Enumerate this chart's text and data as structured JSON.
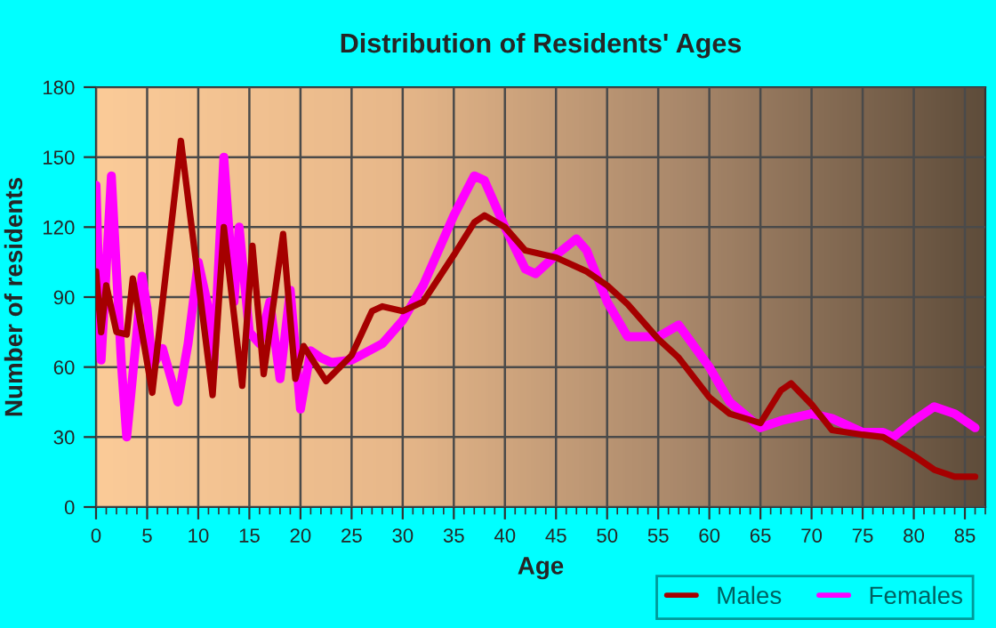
{
  "chart_data": {
    "type": "line",
    "title": "Distribution of Residents' Ages",
    "xlabel": "Age",
    "ylabel": "Number of residents",
    "xlim": [
      0,
      87
    ],
    "xticks": [
      0,
      5,
      10,
      15,
      20,
      25,
      30,
      35,
      40,
      45,
      50,
      55,
      60,
      65,
      70,
      75,
      80,
      85
    ],
    "ylim": [
      0,
      180
    ],
    "yticks": [
      0,
      30,
      60,
      90,
      120,
      150,
      180
    ],
    "grid": true,
    "legend": "bottom right",
    "series": [
      {
        "name": "Males",
        "color": "#a50000",
        "x": [
          0,
          0.5,
          1,
          2,
          3,
          3.6,
          5.5,
          8.3,
          11.4,
          12.5,
          14.3,
          15.3,
          16.4,
          18.3,
          19.5,
          20.3,
          22.5,
          25,
          27,
          28,
          30,
          32,
          35,
          37,
          38,
          40,
          42,
          45,
          48,
          50,
          52,
          55,
          57,
          60,
          62,
          65,
          67,
          68,
          70,
          72,
          75,
          77,
          80,
          82,
          84,
          86
        ],
        "values": [
          101,
          75,
          95,
          75,
          74,
          98,
          49,
          157,
          48,
          120,
          52,
          112,
          57,
          117,
          55,
          69,
          54,
          65,
          84,
          86,
          84,
          88,
          108,
          122,
          125,
          120,
          110,
          107,
          101,
          95,
          87,
          72,
          64,
          47,
          40,
          36,
          50,
          53,
          44,
          33,
          31,
          30,
          22,
          16,
          13,
          13
        ]
      },
      {
        "name": "Females",
        "color": "#ff00ff",
        "x": [
          0,
          0.5,
          1.5,
          2.5,
          3,
          4,
          4.5,
          5,
          5.5,
          6.5,
          8,
          9,
          10,
          11,
          11.5,
          12.5,
          13.5,
          14,
          15,
          16,
          17,
          18,
          19,
          20,
          21,
          22,
          23,
          25,
          28,
          30,
          32,
          35,
          37,
          38,
          40,
          42,
          43,
          45,
          47,
          48,
          50,
          52,
          55,
          57,
          60,
          62,
          65,
          67,
          70,
          72,
          75,
          77,
          78,
          80,
          82,
          84,
          86
        ],
        "values": [
          138,
          63,
          142,
          60,
          30,
          75,
          99,
          85,
          60,
          68,
          45,
          70,
          105,
          85,
          60,
          150,
          88,
          120,
          75,
          70,
          88,
          55,
          93,
          42,
          67,
          64,
          62,
          63,
          70,
          80,
          95,
          125,
          142,
          140,
          120,
          102,
          100,
          108,
          115,
          110,
          88,
          73,
          73,
          78,
          60,
          45,
          34,
          37,
          40,
          38,
          32,
          32,
          30,
          37,
          43,
          40,
          34
        ]
      }
    ]
  }
}
